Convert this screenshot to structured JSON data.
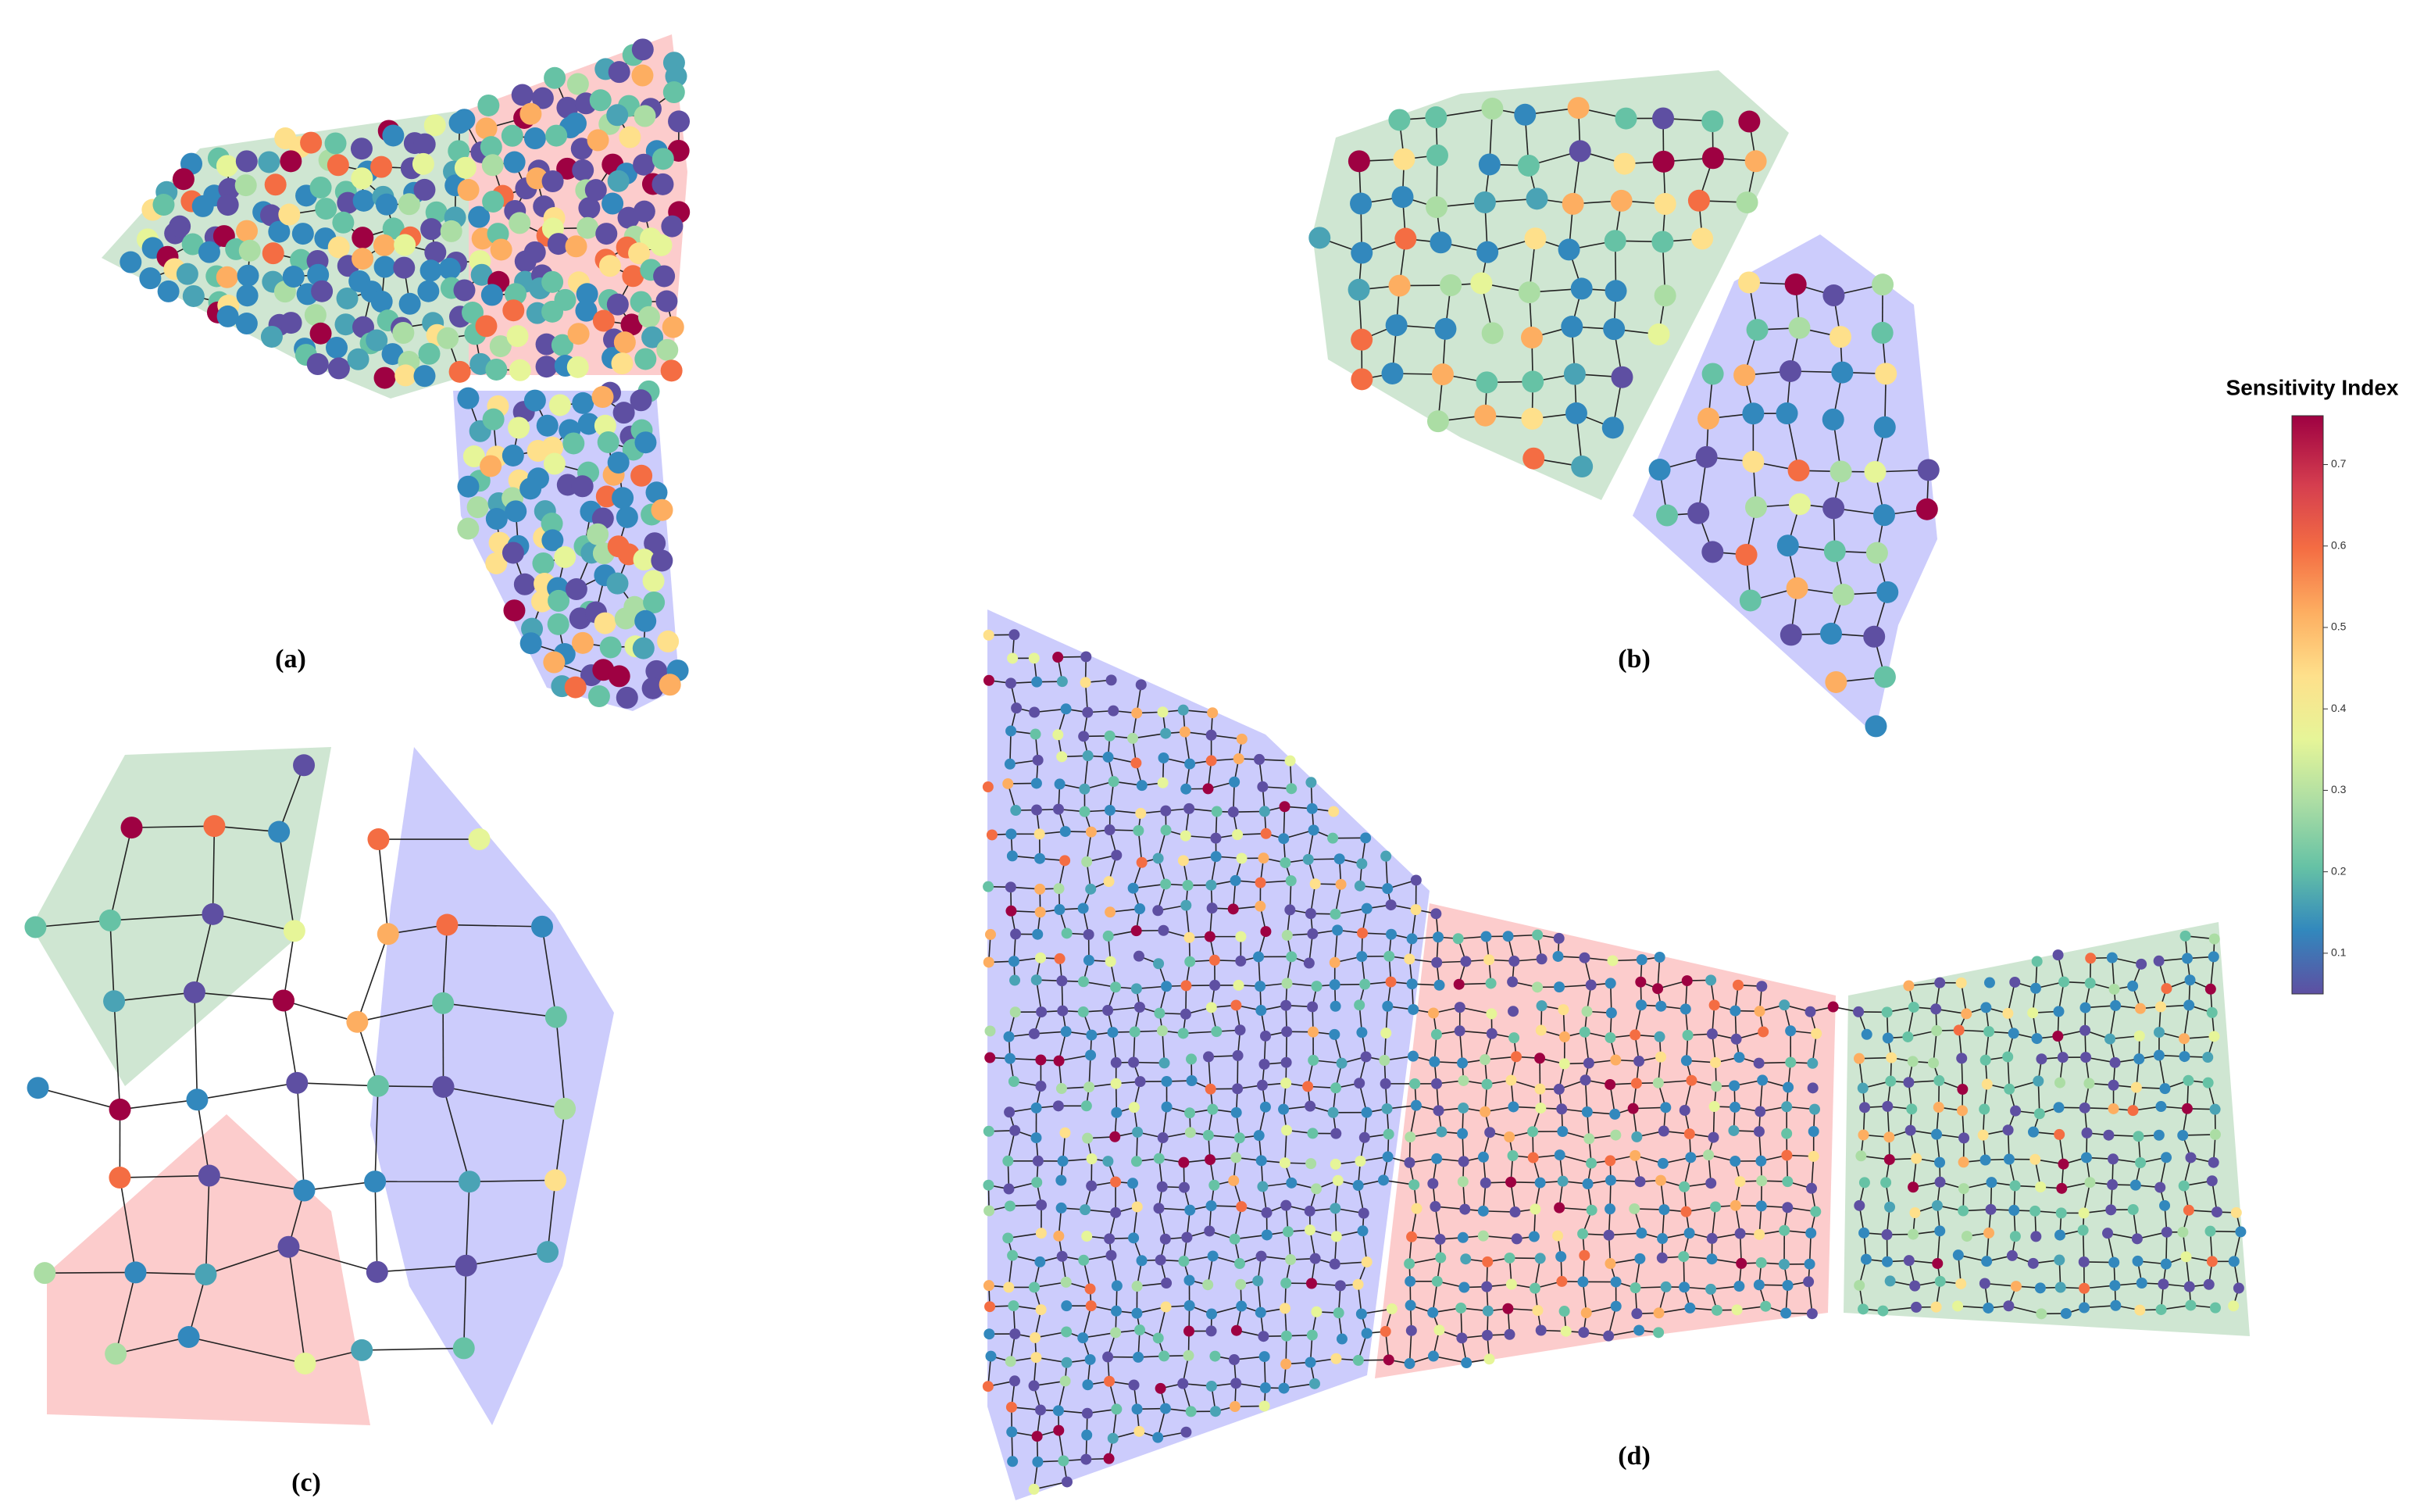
{
  "figure": {
    "panels": [
      {
        "label": "(a)"
      },
      {
        "label": "(b)"
      },
      {
        "label": "(c)"
      },
      {
        "label": "(d)"
      }
    ],
    "colorbar": {
      "title": "Sensitivity Index",
      "lim": [
        0.05,
        0.76
      ],
      "ticks": [
        0.1,
        0.2,
        0.3,
        0.4,
        0.5,
        0.6,
        0.7
      ]
    }
  }
}
